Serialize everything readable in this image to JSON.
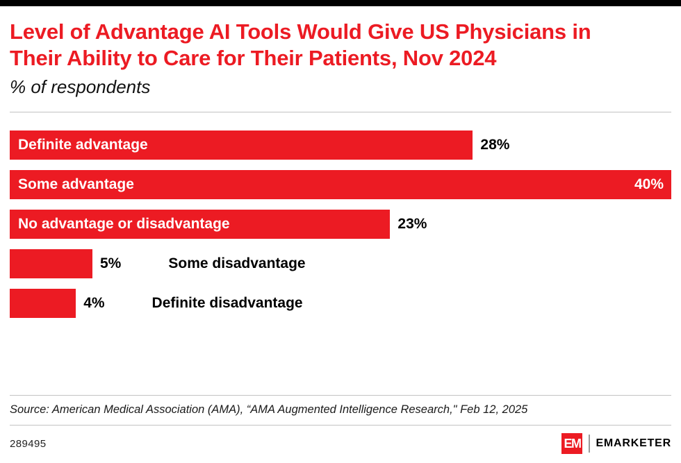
{
  "colors": {
    "accent": "#EC1B23",
    "bar": "#EC1B23",
    "topbar": "#000000"
  },
  "header": {
    "title": "Level of Advantage AI Tools Would Give US Physicians in Their Ability to Care for Their Patients, Nov 2024",
    "subtitle": "% of respondents"
  },
  "chart_data": {
    "type": "bar",
    "orientation": "horizontal",
    "title": "Level of Advantage AI Tools Would Give US Physicians in Their Ability to Care for Their Patients, Nov 2024",
    "unit": "% of respondents",
    "categories": [
      "Definite advantage",
      "Some advantage",
      "No advantage or disadvantage",
      "Some disadvantage",
      "Definite disadvantage"
    ],
    "values": [
      28,
      40,
      23,
      5,
      4
    ],
    "value_labels": [
      "28%",
      "40%",
      "23%",
      "5%",
      "4%"
    ],
    "xlim": [
      0,
      40
    ],
    "bar_color": "#EC1B23",
    "grid": false,
    "legend": false
  },
  "source_note": "Source: American Medical Association (AMA), “AMA Augmented Intelligence Research,\" Feb 12, 2025",
  "footer": {
    "chart_id": "289495",
    "logo_mark": "EM",
    "brand": "EMARKETER"
  }
}
